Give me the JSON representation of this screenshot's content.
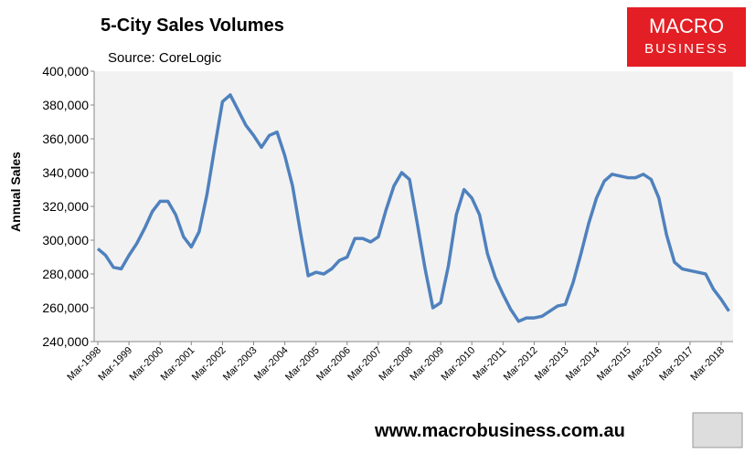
{
  "chart_data": {
    "type": "line",
    "title": "5-City Sales Volumes",
    "subtitle": "Source: CoreLogic",
    "y_label": "Annual Sales",
    "logo": [
      "MACRO",
      "BUSINESS"
    ],
    "footer": "www.macrobusiness.com.au",
    "categories": [
      "Mar-1998",
      null,
      null,
      null,
      "Mar-1999",
      null,
      null,
      null,
      "Mar-2000",
      null,
      null,
      null,
      "Mar-2001",
      null,
      null,
      null,
      "Mar-2002",
      null,
      null,
      null,
      "Mar-2003",
      null,
      null,
      null,
      "Mar-2004",
      null,
      null,
      null,
      "Mar-2005",
      null,
      null,
      null,
      "Mar-2006",
      null,
      null,
      null,
      "Mar-2007",
      null,
      null,
      null,
      "Mar-2008",
      null,
      null,
      null,
      "Mar-2009",
      null,
      null,
      null,
      "Mar-2010",
      null,
      null,
      null,
      "Mar-2011",
      null,
      null,
      null,
      "Mar-2012",
      null,
      null,
      null,
      "Mar-2013",
      null,
      null,
      null,
      "Mar-2014",
      null,
      null,
      null,
      "Mar-2015",
      null,
      null,
      null,
      "Mar-2016",
      null,
      null,
      null,
      "Mar-2017",
      null,
      null,
      null,
      "Mar-2018",
      null
    ],
    "series": [
      {
        "name": "Annual Sales",
        "color": "#4f81bd",
        "values": [
          295000,
          291000,
          284000,
          283000,
          291000,
          298000,
          307000,
          317000,
          323000,
          323000,
          315000,
          302000,
          296000,
          305000,
          327000,
          355000,
          382000,
          386000,
          377000,
          368000,
          362000,
          355000,
          362000,
          364000,
          350000,
          332000,
          305000,
          279000,
          281000,
          280000,
          283000,
          288000,
          290000,
          301000,
          301000,
          299000,
          302000,
          318000,
          332000,
          340000,
          336000,
          310000,
          283000,
          260000,
          263000,
          285000,
          315000,
          330000,
          325000,
          315000,
          292000,
          278000,
          268000,
          259000,
          252000,
          254000,
          254000,
          255000,
          258000,
          261000,
          262000,
          275000,
          292000,
          310000,
          325000,
          335000,
          339000,
          338000,
          337000,
          337000,
          339000,
          336000,
          325000,
          303000,
          287000,
          283000,
          282000,
          281000,
          280000,
          271000,
          265000,
          258000
        ]
      }
    ],
    "ylim": [
      240000,
      400000
    ],
    "yticks": [
      {
        "value": 240000,
        "label": "240,000"
      },
      {
        "value": 260000,
        "label": "260,000"
      },
      {
        "value": 280000,
        "label": "280,000"
      },
      {
        "value": 300000,
        "label": "300,000"
      },
      {
        "value": 320000,
        "label": "320,000"
      },
      {
        "value": 340000,
        "label": "340,000"
      },
      {
        "value": 360000,
        "label": "360,000"
      },
      {
        "value": 380000,
        "label": "380,000"
      },
      {
        "value": 400000,
        "label": "400,000"
      }
    ],
    "grid": false
  }
}
